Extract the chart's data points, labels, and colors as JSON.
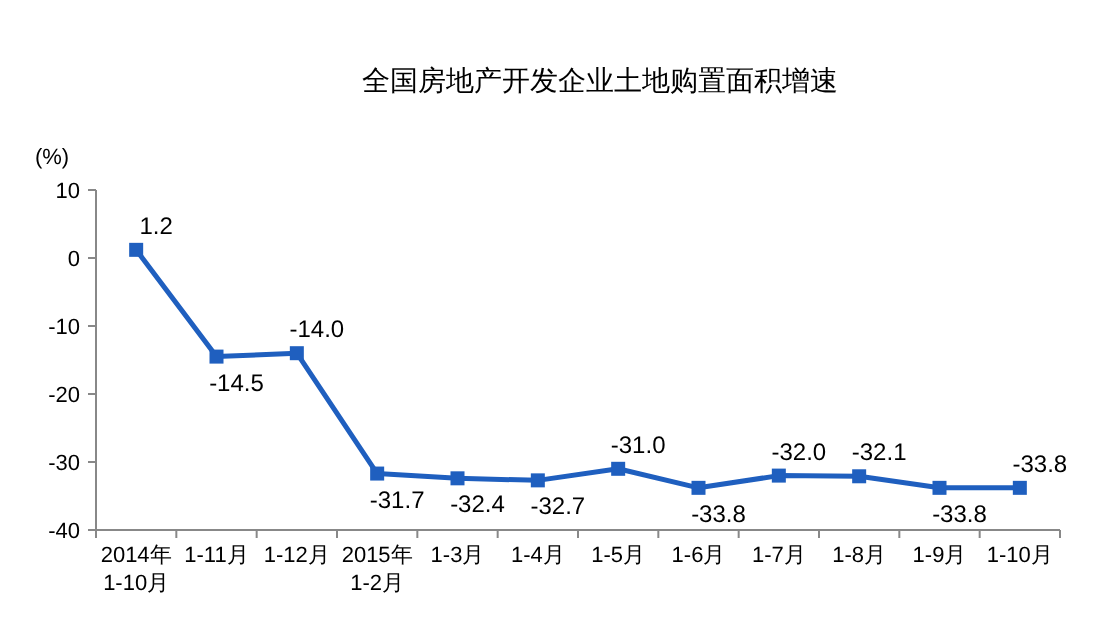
{
  "chart_data": {
    "type": "line",
    "title": "全国房地产开发企业土地购置面积增速",
    "ylabel": "(%)",
    "categories": [
      "2014年\n1-10月",
      "1-11月",
      "1-12月",
      "2015年\n1-2月",
      "1-3月",
      "1-4月",
      "1-5月",
      "1-6月",
      "1-7月",
      "1-8月",
      "1-9月",
      "1-10月"
    ],
    "series": [
      {
        "color": "#1f5fbf",
        "values": [
          1.2,
          -14.5,
          -14.0,
          -31.7,
          -32.4,
          -32.7,
          -31.0,
          -33.8,
          -32.0,
          -32.1,
          -33.8,
          -33.8
        ],
        "value_labels": [
          "1.2",
          "-14.5",
          "-14.0",
          "-31.7",
          "-32.4",
          "-32.7",
          "-31.0",
          "-33.8",
          "-32.0",
          "-32.1",
          "-33.8",
          "-33.8"
        ]
      }
    ],
    "ylim": [
      -40,
      10
    ],
    "yticks": [
      -40,
      -30,
      -20,
      -10,
      0,
      10
    ],
    "marker": "square",
    "line_style": "solid",
    "grid": false
  }
}
